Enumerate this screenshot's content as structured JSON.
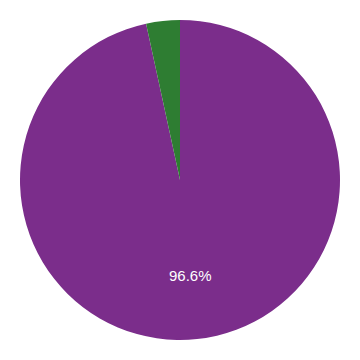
{
  "chart_data": {
    "type": "pie",
    "values": [
      96.6,
      3.4
    ],
    "colors": [
      "#7B2D8B",
      "#2E7D32"
    ],
    "data_labels": true,
    "value_labels": [
      "96.6%",
      null
    ]
  }
}
